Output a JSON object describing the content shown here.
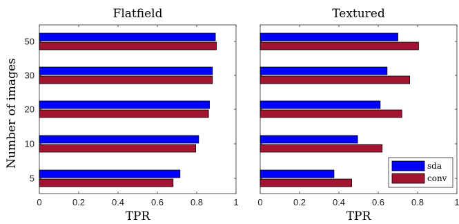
{
  "chart_data": {
    "type": "bar",
    "orientation": "horizontal",
    "ylabel": "Number of images",
    "categories": [
      "5",
      "10",
      "20",
      "30",
      "50"
    ],
    "xlim": [
      0,
      1
    ],
    "xticks": [
      "0",
      "0.2",
      "0.4",
      "0.6",
      "0.8",
      "1"
    ],
    "legend": {
      "placement": "bottom-right",
      "panel": 1
    },
    "colors": {
      "sda": "#0000ff",
      "conv": "#a2142f"
    },
    "panels": [
      {
        "title": "Flatfield",
        "xlabel": "TPR",
        "series": [
          {
            "name": "sda",
            "values": [
              0.715,
              0.81,
              0.865,
              0.88,
              0.895
            ]
          },
          {
            "name": "conv",
            "values": [
              0.68,
              0.795,
              0.86,
              0.88,
              0.9
            ]
          }
        ]
      },
      {
        "title": "Textured",
        "xlabel": "TPR",
        "series": [
          {
            "name": "sda",
            "values": [
              0.375,
              0.495,
              0.61,
              0.645,
              0.7
            ]
          },
          {
            "name": "conv",
            "values": [
              0.465,
              0.62,
              0.72,
              0.76,
              0.805
            ]
          }
        ]
      }
    ]
  }
}
